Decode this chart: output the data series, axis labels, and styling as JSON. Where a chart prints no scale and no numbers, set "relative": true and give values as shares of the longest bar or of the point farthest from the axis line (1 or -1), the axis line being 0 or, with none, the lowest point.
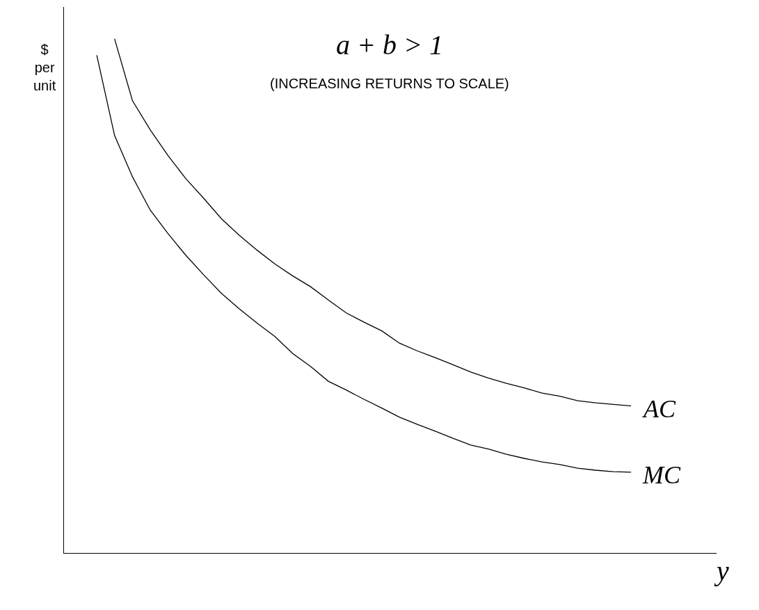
{
  "chart_data": {
    "type": "line",
    "title": "a + b > 1",
    "subtitle": "(INCREASING RETURNS TO SCALE)",
    "xlabel": "y",
    "ylabel": "$\nper\nunit",
    "relative": true,
    "categories": [
      null,
      null,
      null,
      null,
      null,
      null,
      null,
      null,
      null,
      null,
      null,
      null,
      null,
      null,
      null,
      null,
      null,
      null,
      null,
      null,
      null,
      null,
      null,
      null,
      null,
      null,
      null,
      null,
      null,
      null,
      null
    ],
    "series": [
      {
        "name": "AC",
        "color": "#000000",
        "values": [
          null,
          1.0,
          0.88,
          0.823,
          0.773,
          0.728,
          0.69,
          0.65,
          0.618,
          0.589,
          0.562,
          0.539,
          0.518,
          0.492,
          0.467,
          0.449,
          0.432,
          0.408,
          0.393,
          0.38,
          0.366,
          0.352,
          0.34,
          0.33,
          0.321,
          0.311,
          0.305,
          0.296,
          0.292,
          0.289,
          0.286
        ]
      },
      {
        "name": "MC",
        "color": "#000000",
        "values": [
          0.968,
          0.812,
          0.732,
          0.667,
          0.621,
          0.579,
          0.541,
          0.505,
          0.475,
          0.447,
          0.421,
          0.388,
          0.363,
          0.334,
          0.317,
          0.299,
          0.282,
          0.264,
          0.25,
          0.237,
          0.223,
          0.21,
          0.202,
          0.192,
          0.184,
          0.177,
          0.172,
          0.165,
          0.161,
          0.158,
          0.157
        ]
      }
    ],
    "legend": false,
    "marker": "none",
    "line_style": "solid"
  }
}
